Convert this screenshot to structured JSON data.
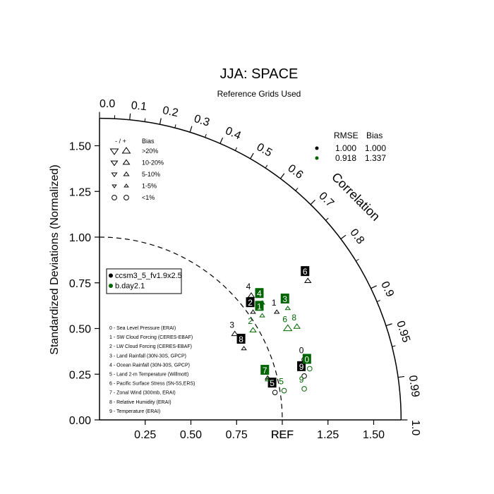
{
  "chart_data": {
    "type": "scatter",
    "title": "JJA: SPACE",
    "subtitle": "Reference Grids Used",
    "ylabel": "Standardized Deviations (Normalized)",
    "angular_label": "Correlation",
    "ref_label": "REF",
    "std_range": [
      0,
      1.65
    ],
    "std_ticks": [
      "0.00",
      "0.25",
      "0.50",
      "0.75",
      "1.00",
      "1.25",
      "1.50"
    ],
    "x_tick_labels": [
      "0.25",
      "0.50",
      "0.75",
      "REF",
      "1.25",
      "1.50"
    ],
    "corr_ticks": [
      "0.0",
      "0.1",
      "0.2",
      "0.3",
      "0.4",
      "0.5",
      "0.6",
      "0.7",
      "0.8",
      "0.9",
      "0.95",
      "0.99",
      "1.0"
    ],
    "bias_legend": {
      "header_sign": "- / +",
      "header_bias": "Bias",
      "rows": [
        ">20%",
        "10-20%",
        "5-10%",
        "1-5%",
        "<1%"
      ]
    },
    "stats_table": {
      "headers": [
        "RMSE",
        "Bias"
      ],
      "rows": [
        {
          "color": "#000000",
          "rmse": "1.000",
          "bias": "1.000"
        },
        {
          "color": "#006400",
          "rmse": "0.918",
          "bias": "1.337"
        }
      ]
    },
    "legend": [
      {
        "label": "ccsm3_5_fv1.9x2.5",
        "color": "#000000"
      },
      {
        "label": "b.day2.1",
        "color": "#006400"
      }
    ],
    "variables": [
      "0 - Sea Level Pressure (ERAI)",
      "1 - SW Cloud Forcing (CERES-EBAF)",
      "2 - LW Cloud Forcing (CERES-EBAF)",
      "3 - Land Rainfall (30N-30S, GPCP)",
      "4 - Ocean Rainfall (30N-30S, GPCP)",
      "5 - Land 2-m Temperature (Willmott)",
      "6 - Pacific Surface Stress (5N-5S,ERS)",
      "7 - Zonal Wind (300mb, ERAI)",
      "8 - Relative Humidity (ERAI)",
      "9 - Temperature (ERAI)"
    ],
    "series": [
      {
        "name": "ccsm3_5_fv1.9x2.5",
        "color": "#000000",
        "points": [
          {
            "id": "0",
            "x": 1.12,
            "y": 0.33,
            "marker": "circle",
            "boxed": false
          },
          {
            "id": "1",
            "x": 0.97,
            "y": 0.59,
            "marker": "tri-up-small",
            "boxed": false
          },
          {
            "id": "2",
            "x": 0.84,
            "y": 0.59,
            "marker": "tri-up-small",
            "boxed": true
          },
          {
            "id": "3",
            "x": 0.74,
            "y": 0.47,
            "marker": "tri-up",
            "boxed": false
          },
          {
            "id": "4",
            "x": 0.83,
            "y": 0.68,
            "marker": "tri-up",
            "boxed": false
          },
          {
            "id": "5",
            "x": 0.96,
            "y": 0.15,
            "marker": "circle",
            "boxed": true
          },
          {
            "id": "6",
            "x": 1.14,
            "y": 0.76,
            "marker": "tri-up",
            "boxed": true
          },
          {
            "id": "7",
            "x": 0.92,
            "y": 0.23,
            "marker": "tri-up-small",
            "boxed": false
          },
          {
            "id": "8",
            "x": 0.79,
            "y": 0.39,
            "marker": "tri-up-small",
            "boxed": true
          },
          {
            "id": "9",
            "x": 1.12,
            "y": 0.24,
            "marker": "circle",
            "boxed": true
          }
        ]
      },
      {
        "name": "b.day2.1",
        "color": "#006400",
        "points": [
          {
            "id": "0",
            "x": 1.15,
            "y": 0.28,
            "marker": "circle",
            "boxed": true
          },
          {
            "id": "1",
            "x": 0.89,
            "y": 0.57,
            "marker": "tri-up-small",
            "boxed": true
          },
          {
            "id": "2",
            "x": 0.84,
            "y": 0.49,
            "marker": "tri-up",
            "boxed": false
          },
          {
            "id": "3",
            "x": 1.03,
            "y": 0.61,
            "marker": "tri-up-small",
            "boxed": true
          },
          {
            "id": "4",
            "x": 0.89,
            "y": 0.64,
            "marker": "tri-up-small",
            "boxed": true
          },
          {
            "id": "5",
            "x": 1.01,
            "y": 0.16,
            "marker": "circle",
            "boxed": false
          },
          {
            "id": "6",
            "x": 1.03,
            "y": 0.5,
            "marker": "tri-up-large",
            "boxed": false
          },
          {
            "id": "7",
            "x": 0.92,
            "y": 0.22,
            "marker": "tri-up-small",
            "boxed": true
          },
          {
            "id": "8",
            "x": 1.08,
            "y": 0.51,
            "marker": "tri-up",
            "boxed": false
          },
          {
            "id": "9",
            "x": 1.12,
            "y": 0.17,
            "marker": "circle",
            "boxed": false
          }
        ]
      }
    ]
  }
}
